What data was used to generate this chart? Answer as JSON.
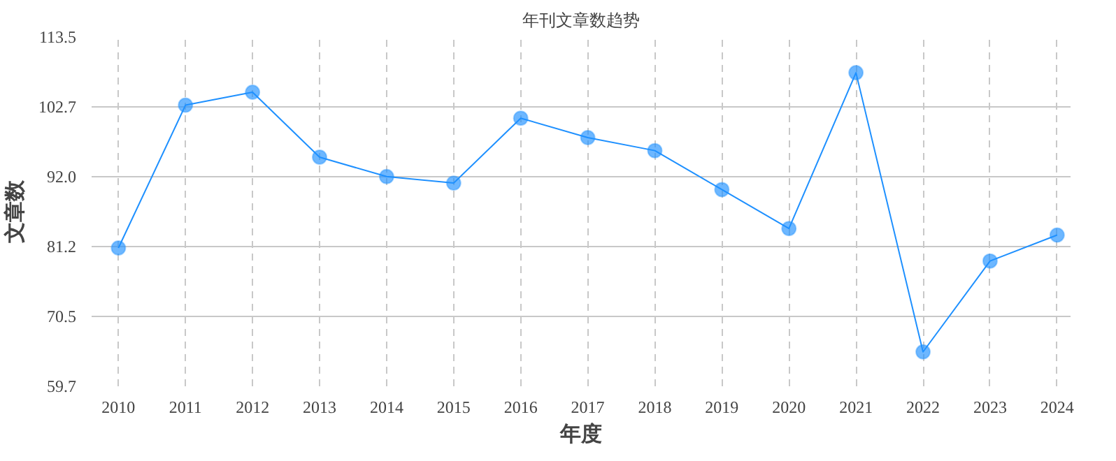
{
  "chart_data": {
    "type": "line",
    "title": "年刊文章数趋势",
    "xlabel": "年度",
    "ylabel": "文章数",
    "x": [
      2010,
      2011,
      2012,
      2013,
      2014,
      2015,
      2016,
      2017,
      2018,
      2019,
      2020,
      2021,
      2022,
      2023,
      2024
    ],
    "series": [
      {
        "color": "#1e90ff",
        "values": [
          81,
          103,
          105,
          95,
          92,
          91,
          101,
          98,
          96,
          90,
          84,
          108,
          65,
          79,
          83
        ]
      }
    ],
    "xlim": [
      2009.6,
      2024.2
    ],
    "xticks": [
      2010,
      2011,
      2012,
      2013,
      2014,
      2015,
      2016,
      2017,
      2018,
      2019,
      2020,
      2021,
      2022,
      2023,
      2024
    ],
    "ylim": [
      59.7,
      113.5
    ],
    "yticks": [
      59.7,
      70.5,
      81.2,
      {
        "value": 92,
        "label": "92.0"
      },
      102.7,
      113.5
    ],
    "grid": true,
    "marker": "circle",
    "line_style": "solid"
  }
}
